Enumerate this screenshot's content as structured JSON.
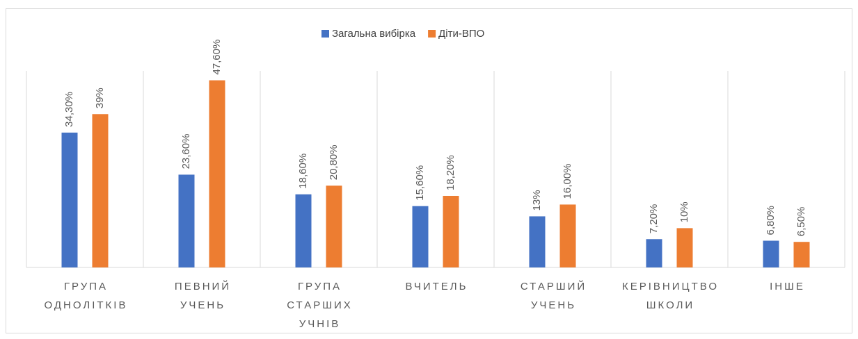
{
  "chart_data": {
    "type": "bar",
    "categories": [
      "ГРУПА ОДНОЛІТКІВ",
      "ПЕВНИЙ УЧЕНЬ",
      "ГРУПА СТАРШИХ УЧНІВ",
      "ВЧИТЕЛЬ",
      "СТАРШИЙ УЧЕНЬ",
      "КЕРІВНИЦТВО ШКОЛИ",
      "ІНШЕ"
    ],
    "series": [
      {
        "name": "Загальна вибірка",
        "color": "#4472c4",
        "values": [
          34.3,
          23.6,
          18.6,
          15.6,
          13,
          7.2,
          6.8
        ],
        "value_labels": [
          "34,30%",
          "23,60%",
          "18,60%",
          "15,60%",
          "13%",
          "7,20%",
          "6,80%"
        ]
      },
      {
        "name": "Діти-ВПО",
        "color": "#ed7d31",
        "values": [
          39,
          47.6,
          20.8,
          18.2,
          16,
          10,
          6.5
        ],
        "value_labels": [
          "39%",
          "47,60%",
          "20,80%",
          "18,20%",
          "16,00%",
          "10%",
          "6,50%"
        ]
      }
    ],
    "ylim": [
      0,
      50
    ],
    "legend": "top"
  }
}
